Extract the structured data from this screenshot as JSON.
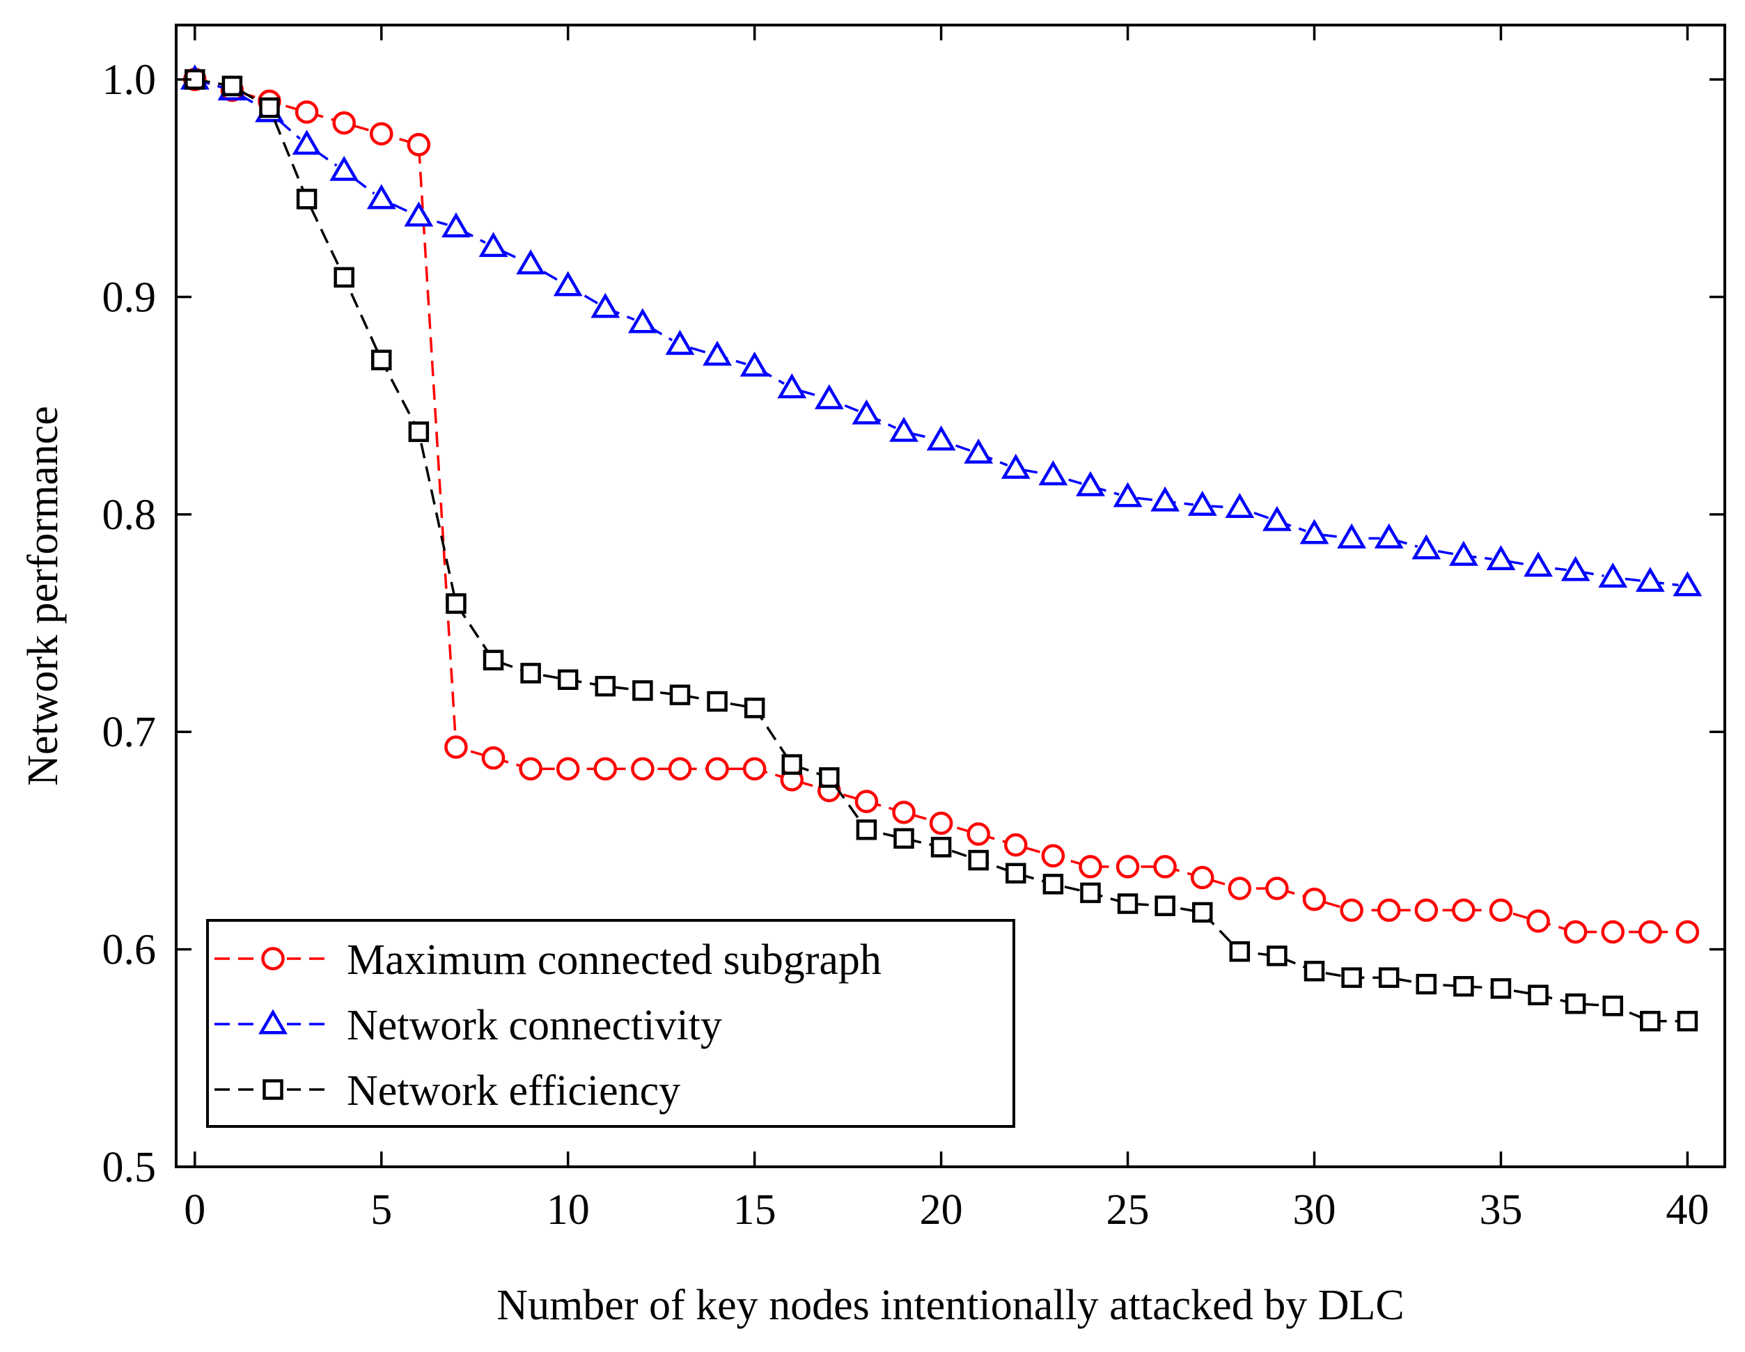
{
  "chart_data": {
    "type": "line",
    "title": "",
    "xlabel": "Number of key nodes intentionally attacked by DLC",
    "ylabel": "Network performance",
    "xlim": [
      -0.5,
      41
    ],
    "ylim": [
      0.5,
      1.025
    ],
    "xticks": [
      0,
      5,
      10,
      15,
      20,
      25,
      30,
      35,
      40
    ],
    "yticks": [
      0.5,
      0.6,
      0.7,
      0.8,
      0.9,
      1.0
    ],
    "xtick_labels": [
      "0",
      "5",
      "10",
      "15",
      "20",
      "25",
      "30",
      "35",
      "40"
    ],
    "ytick_labels": [
      "0.5",
      "0.6",
      "0.7",
      "0.8",
      "0.9",
      "1.0"
    ],
    "grid": false,
    "legend_position": "bottom-left",
    "x": [
      0,
      1,
      2,
      3,
      4,
      5,
      6,
      7,
      8,
      9,
      10,
      11,
      12,
      13,
      14,
      15,
      16,
      17,
      18,
      19,
      20,
      21,
      22,
      23,
      24,
      25,
      26,
      27,
      28,
      29,
      30,
      31,
      32,
      33,
      34,
      35,
      36,
      37,
      38,
      39,
      40
    ],
    "series": [
      {
        "name": "Maximum connected subgraph",
        "color": "#ff0000",
        "marker": "circle",
        "values": [
          1.0,
          0.995,
          0.99,
          0.985,
          0.98,
          0.975,
          0.97,
          0.693,
          0.688,
          0.683,
          0.683,
          0.683,
          0.683,
          0.683,
          0.683,
          0.683,
          0.678,
          0.673,
          0.668,
          0.663,
          0.658,
          0.653,
          0.648,
          0.643,
          0.638,
          0.638,
          0.638,
          0.633,
          0.628,
          0.628,
          0.623,
          0.618,
          0.618,
          0.618,
          0.618,
          0.618,
          0.613,
          0.608,
          0.608,
          0.608,
          0.608
        ]
      },
      {
        "name": "Network connectivity",
        "color": "#0000ff",
        "marker": "triangle",
        "values": [
          1.0,
          0.995,
          0.985,
          0.97,
          0.958,
          0.945,
          0.937,
          0.932,
          0.923,
          0.915,
          0.905,
          0.895,
          0.888,
          0.878,
          0.873,
          0.868,
          0.858,
          0.853,
          0.846,
          0.838,
          0.834,
          0.828,
          0.821,
          0.818,
          0.813,
          0.808,
          0.806,
          0.804,
          0.803,
          0.797,
          0.791,
          0.789,
          0.789,
          0.784,
          0.781,
          0.779,
          0.776,
          0.774,
          0.771,
          0.769,
          0.767
        ]
      },
      {
        "name": "Network efficiency",
        "color": "#000000",
        "marker": "square",
        "values": [
          1.0,
          0.997,
          0.987,
          0.945,
          0.909,
          0.871,
          0.838,
          0.759,
          0.733,
          0.727,
          0.724,
          0.721,
          0.719,
          0.717,
          0.714,
          0.711,
          0.685,
          0.679,
          0.655,
          0.651,
          0.647,
          0.641,
          0.635,
          0.63,
          0.626,
          0.621,
          0.62,
          0.617,
          0.599,
          0.597,
          0.59,
          0.587,
          0.587,
          0.584,
          0.583,
          0.582,
          0.579,
          0.575,
          0.574,
          0.567,
          0.567
        ]
      }
    ]
  }
}
